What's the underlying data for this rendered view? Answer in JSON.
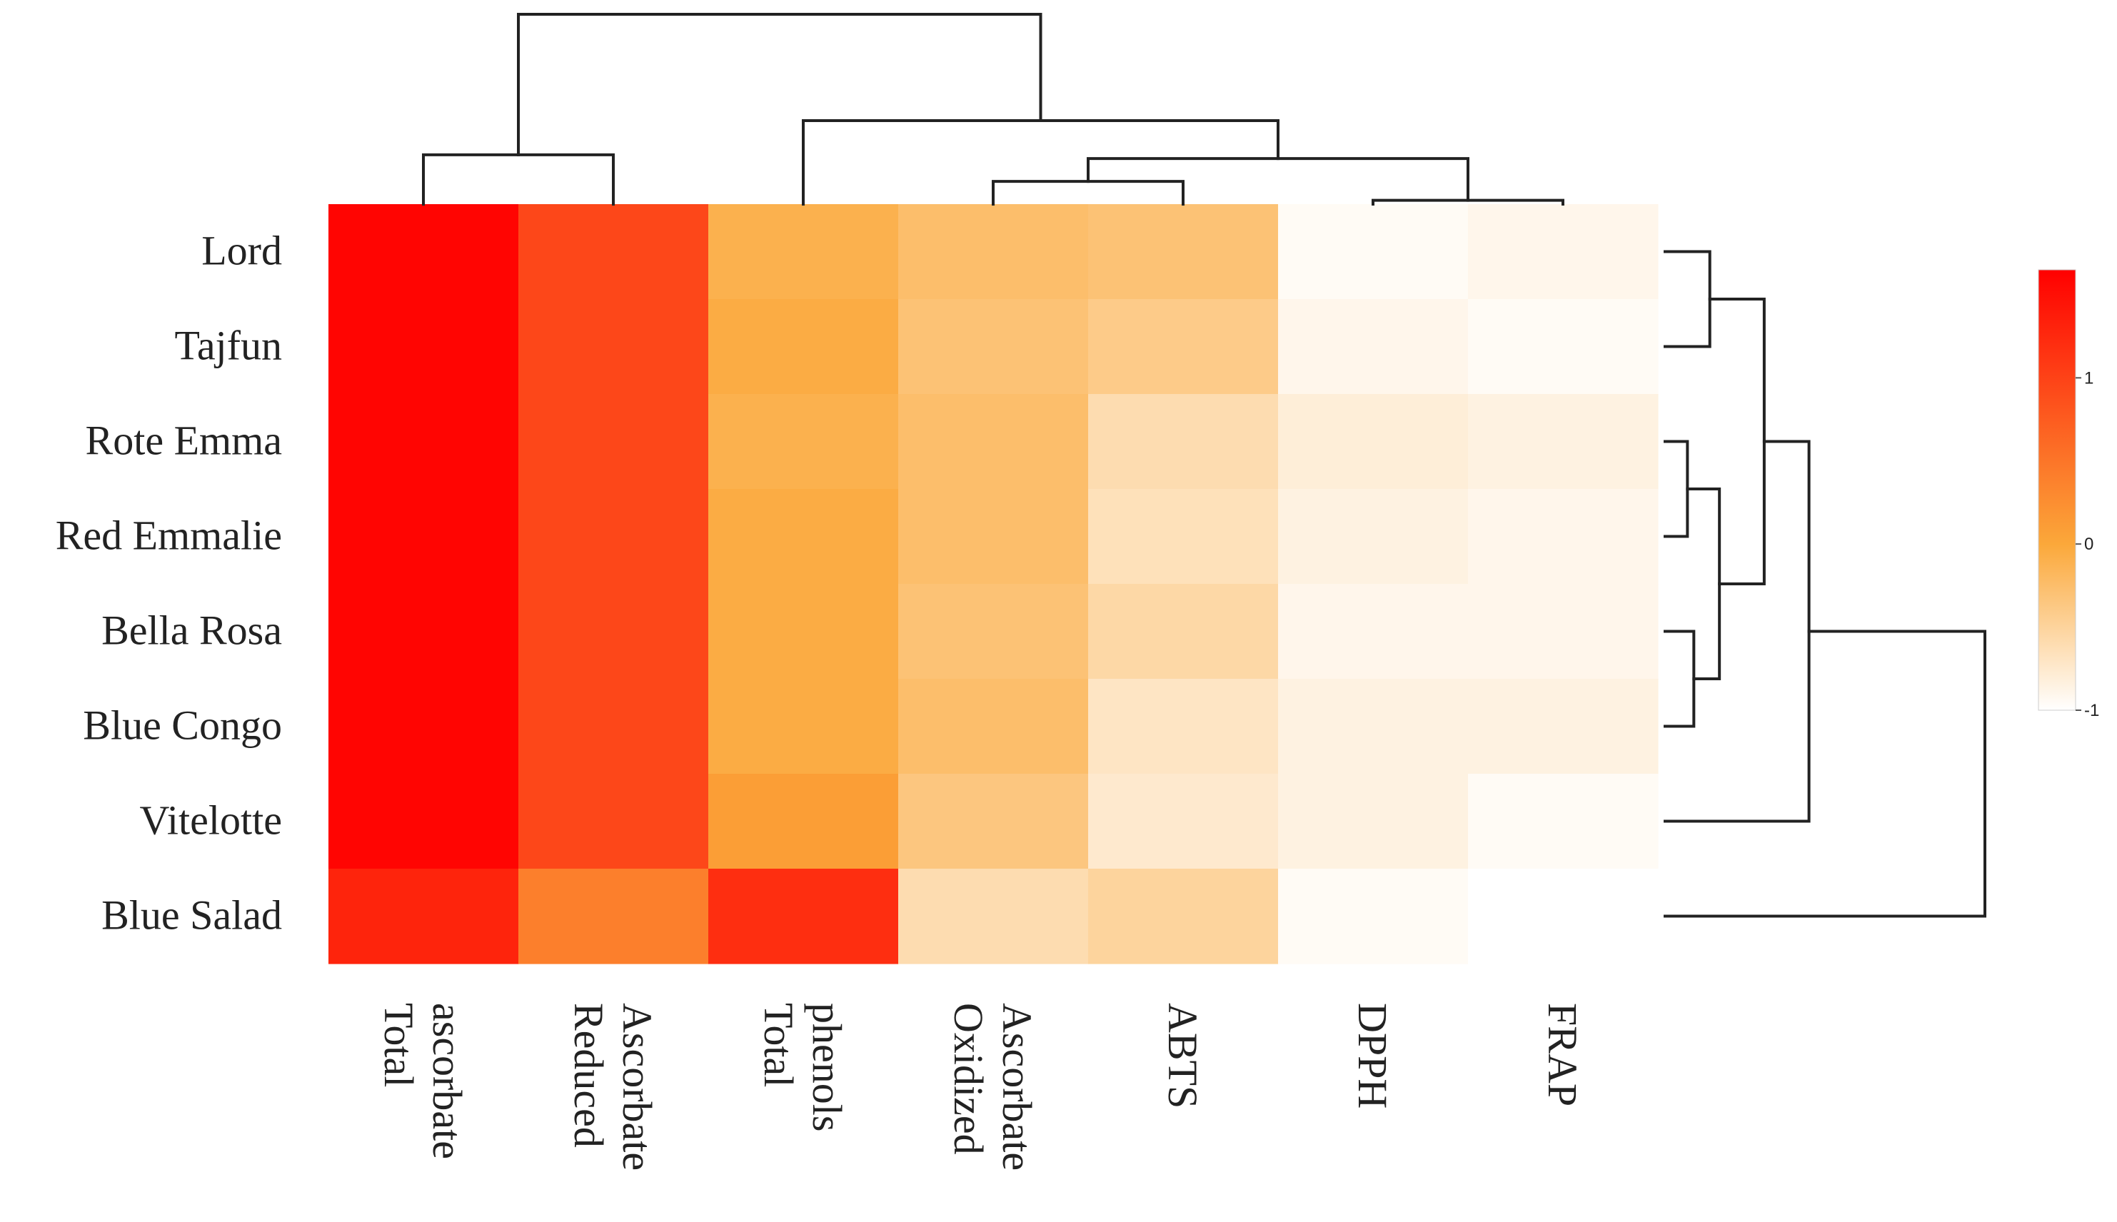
{
  "chart_data": {
    "type": "heatmap",
    "title": "",
    "rows": [
      "Lord",
      "Tajfun",
      "Rote Emma",
      "Red Emmalie",
      "Bella Rosa",
      "Blue Congo",
      "Vitelotte",
      "Blue Salad"
    ],
    "columns": [
      "Total ascorbate",
      "Reduced Ascorbate",
      "Total phenols",
      "Oxidized Ascorbate",
      "ABTS",
      "DPPH",
      "FRAP"
    ],
    "column_label_lines": [
      [
        "Total",
        "ascorbate"
      ],
      [
        "Reduced",
        "Ascorbate"
      ],
      [
        "Total",
        "phenols"
      ],
      [
        "Oxidized",
        "Ascorbate"
      ],
      [
        "ABTS"
      ],
      [
        "DPPH"
      ],
      [
        "FRAP"
      ]
    ],
    "values": [
      [
        1.6,
        0.95,
        -0.1,
        -0.25,
        -0.3,
        -0.95,
        -0.9
      ],
      [
        1.6,
        0.95,
        -0.05,
        -0.3,
        -0.4,
        -0.9,
        -0.95
      ],
      [
        1.6,
        0.95,
        -0.1,
        -0.25,
        -0.6,
        -0.8,
        -0.85
      ],
      [
        1.6,
        0.95,
        -0.05,
        -0.25,
        -0.65,
        -0.85,
        -0.9
      ],
      [
        1.6,
        0.95,
        -0.05,
        -0.3,
        -0.55,
        -0.9,
        -0.9
      ],
      [
        1.6,
        0.95,
        -0.05,
        -0.25,
        -0.7,
        -0.85,
        -0.85
      ],
      [
        1.6,
        0.95,
        0.1,
        -0.35,
        -0.75,
        -0.85,
        -0.95
      ],
      [
        1.3,
        0.4,
        1.2,
        -0.6,
        -0.5,
        -0.95,
        -1.0
      ]
    ],
    "legend": {
      "min": -1,
      "max": 1.65,
      "ticks": [
        1,
        0,
        -1
      ],
      "tick_labels": [
        "1",
        "0",
        "-1"
      ],
      "colors": {
        "low": "#ffffff",
        "mid": "#fba83a",
        "high": "#ff0000"
      }
    },
    "row_dendrogram": [
      {
        "id": "A",
        "left": "Lord",
        "right": "Tajfun",
        "height": 0.14
      },
      {
        "id": "B",
        "left": "Rote Emma",
        "right": "Red Emmalie",
        "height": 0.07
      },
      {
        "id": "C",
        "left": "Bella Rosa",
        "right": "Blue Congo",
        "height": 0.09
      },
      {
        "id": "D",
        "left": "B",
        "right": "C",
        "height": 0.17
      },
      {
        "id": "E",
        "left": "A",
        "right": "D",
        "height": 0.31
      },
      {
        "id": "F",
        "left": "E",
        "right": "Vitelotte",
        "height": 0.45
      },
      {
        "id": "G",
        "left": "F",
        "right": "Blue Salad",
        "height": 1.0
      }
    ],
    "column_dendrogram": [
      {
        "id": "a",
        "left": "Total ascorbate",
        "right": "Reduced Ascorbate",
        "height": 0.26
      },
      {
        "id": "b",
        "left": "Oxidized Ascorbate",
        "right": "ABTS",
        "height": 0.12
      },
      {
        "id": "c",
        "left": "DPPH",
        "right": "FRAP",
        "height": 0.02
      },
      {
        "id": "d",
        "left": "b",
        "right": "c",
        "height": 0.24
      },
      {
        "id": "e",
        "left": "Total phenols",
        "right": "d",
        "height": 0.44
      },
      {
        "id": "f",
        "left": "a",
        "right": "e",
        "height": 1.0
      }
    ]
  }
}
